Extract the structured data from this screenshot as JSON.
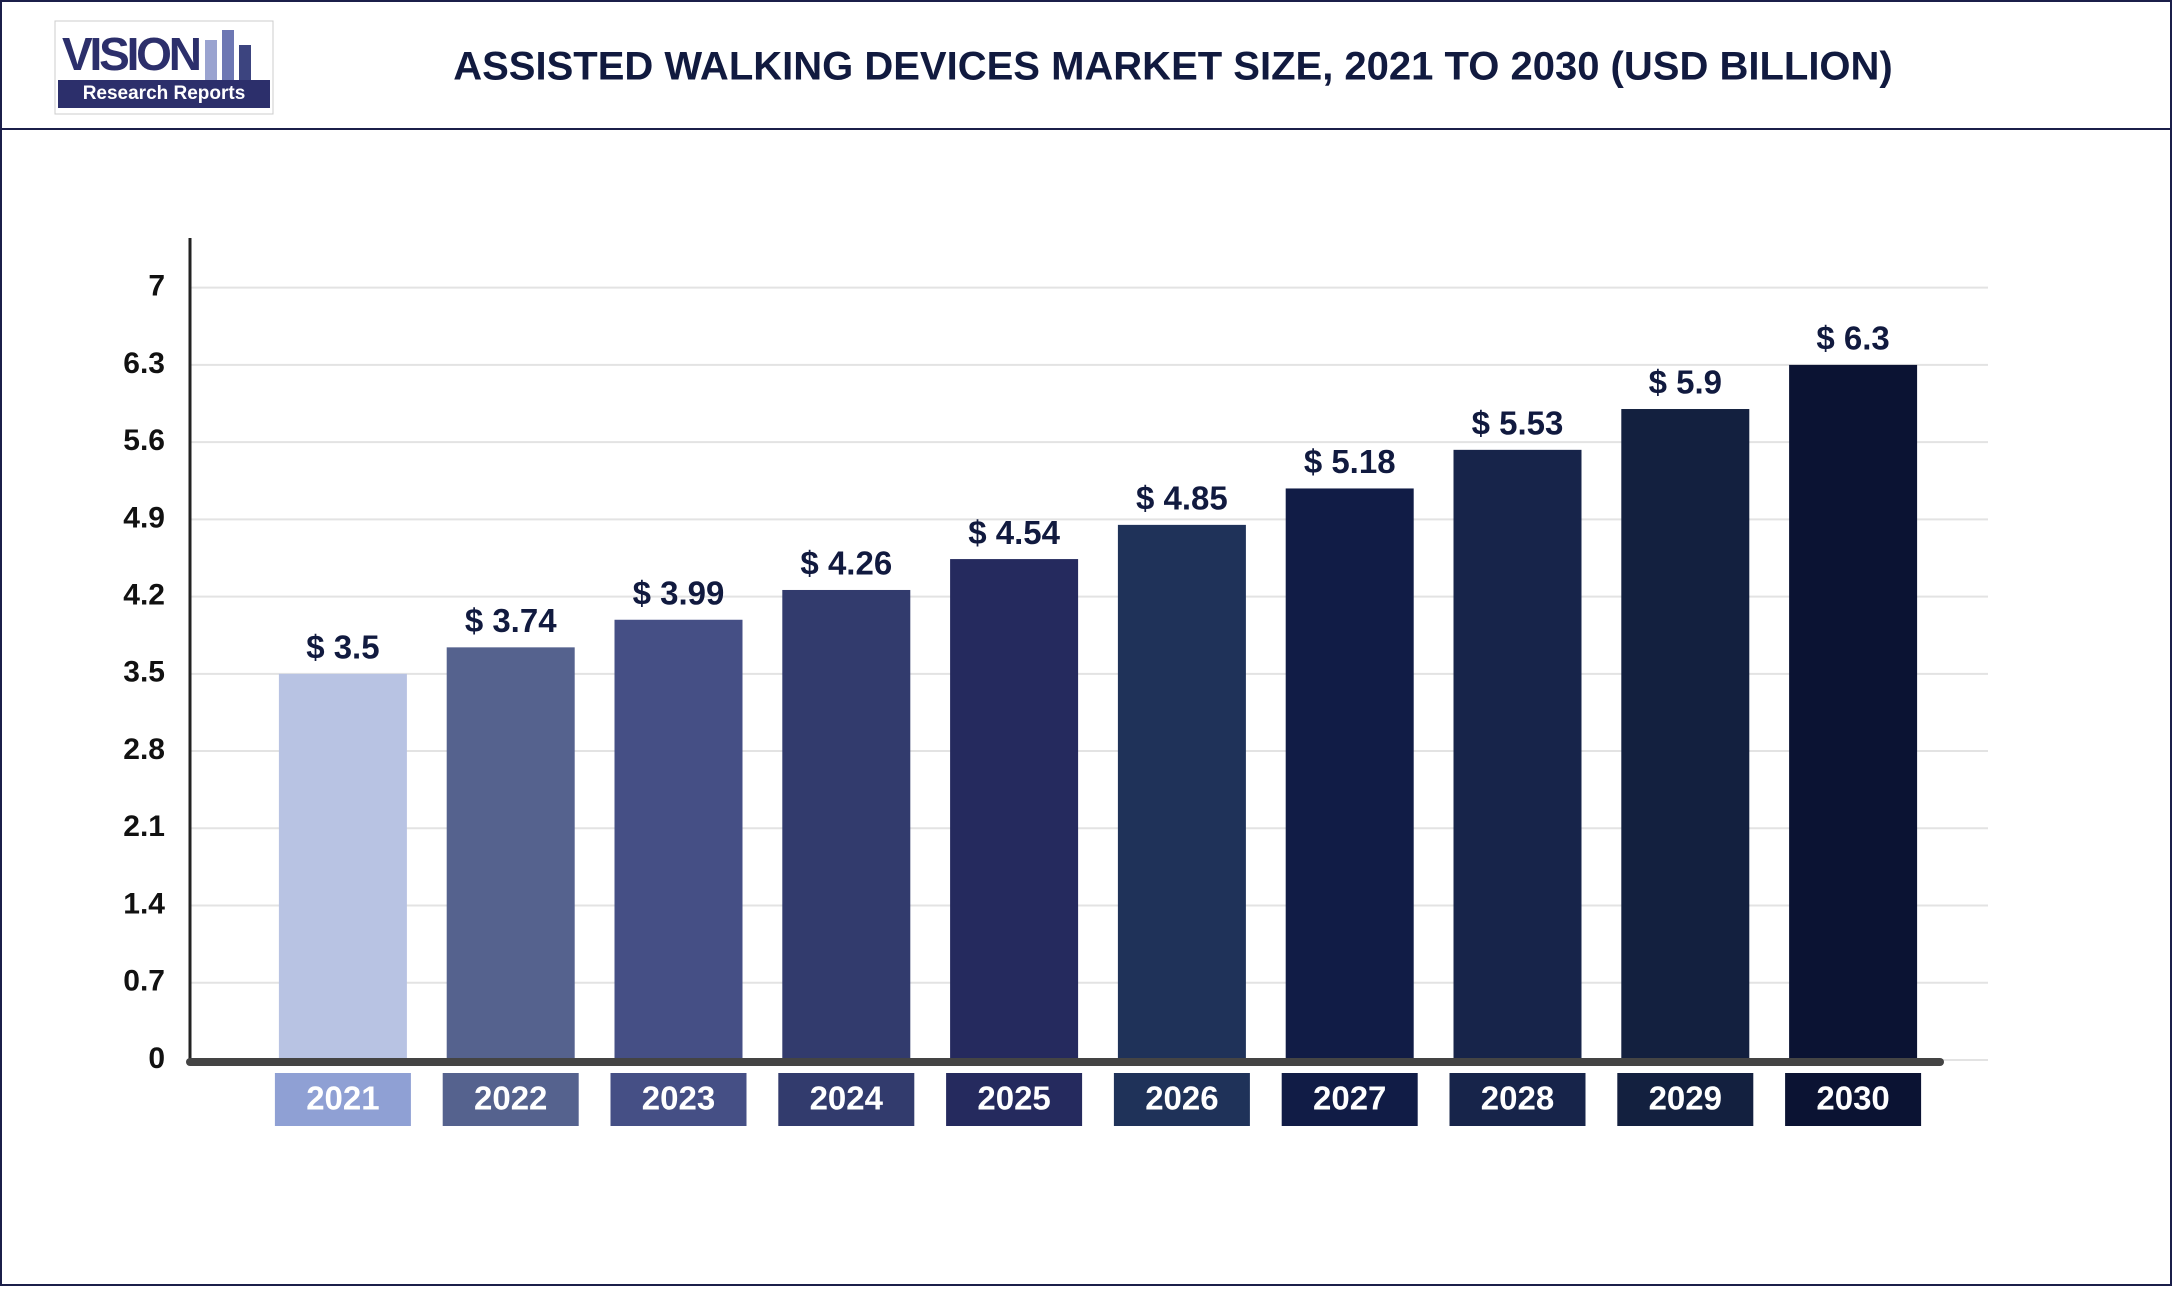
{
  "logo": {
    "name": "VISION",
    "tagline": "Research Reports"
  },
  "chart_data": {
    "type": "bar",
    "title": "ASSISTED WALKING DEVICES MARKET SIZE, 2021 TO 2030 (USD BILLION)",
    "categories": [
      "2021",
      "2022",
      "2023",
      "2024",
      "2025",
      "2026",
      "2027",
      "2028",
      "2029",
      "2030"
    ],
    "values": [
      3.5,
      3.74,
      3.99,
      4.26,
      4.54,
      4.85,
      5.18,
      5.53,
      5.9,
      6.3
    ],
    "value_labels": [
      "$ 3.5",
      "$ 3.74",
      "$ 3.99",
      "$ 4.26",
      "$ 4.54",
      "$ 4.85",
      "$ 5.18",
      "$ 5.53",
      "$ 5.9",
      "$ 6.3"
    ],
    "colors": [
      "#b8c3e3",
      "#55628e",
      "#454f85",
      "#323b6d",
      "#252a5e",
      "#1f3259",
      "#111c46",
      "#17244a",
      "#13203f",
      "#0b1333"
    ],
    "category_box_colors": [
      "#8fa0d4",
      "#55628e",
      "#454f85",
      "#323b6d",
      "#252a5e",
      "#1f3259",
      "#111c46",
      "#17244a",
      "#13203f",
      "#0b1333"
    ],
    "ylim": [
      0,
      7.45
    ],
    "yticks": [
      0,
      0.7,
      1.4,
      2.1,
      2.8,
      3.5,
      4.2,
      4.9,
      5.6,
      6.3,
      7
    ],
    "grid": true
  }
}
